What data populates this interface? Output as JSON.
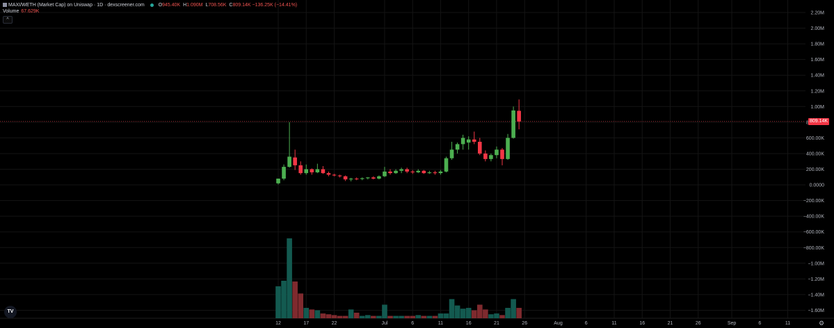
{
  "header": {
    "symbol": "MAXI/WETH (Market Cap) on Uniswap · 1D · dexscreener.com",
    "o_label": "O",
    "o_value": "945.40K",
    "h_label": "H",
    "h_value": "1.090M",
    "l_label": "L",
    "l_value": "708.56K",
    "c_label": "C",
    "c_value": "809.14K",
    "change": "−136.25K (−14.41%)"
  },
  "volume": {
    "label": "Volume",
    "value": "67.629K"
  },
  "collapse_glyph": "^",
  "logo_text": "TV",
  "settings_icon": "gear-icon",
  "current_price_label": "809.14K",
  "colors": {
    "up": "#26a69a",
    "down": "#ef5350",
    "up_bright": "#4caf50",
    "down_bright": "#f23645",
    "vol_up": "#135a50",
    "vol_down": "#7f2a2e"
  },
  "chart_data": {
    "type": "candlestick",
    "y_ticks": [
      "2.20M",
      "2.00M",
      "1.80M",
      "1.60M",
      "1.40M",
      "1.20M",
      "1.00M",
      "800.00K",
      "600.00K",
      "400.00K",
      "200.00K",
      "0.0000",
      "−200.00K",
      "−400.00K",
      "−600.00K",
      "−800.00K",
      "−1.00M",
      "−1.20M",
      "−1.40M",
      "−1.60M"
    ],
    "x_ticks": [
      "12",
      "17",
      "22",
      "Jul",
      "6",
      "11",
      "16",
      "21",
      "26",
      "Aug",
      "6",
      "11",
      "16",
      "21",
      "26",
      "Sep",
      "6",
      "11"
    ],
    "ylim": [
      -1700000,
      2250000
    ],
    "candles": [
      {
        "o": 20000,
        "h": 80000,
        "l": 5000,
        "c": 80000,
        "v": 0.4
      },
      {
        "o": 80000,
        "h": 260000,
        "l": 60000,
        "c": 230000,
        "v": 0.47
      },
      {
        "o": 230000,
        "h": 800000,
        "l": 220000,
        "c": 360000,
        "v": 1.0
      },
      {
        "o": 350000,
        "h": 450000,
        "l": 190000,
        "c": 250000,
        "v": 0.46
      },
      {
        "o": 250000,
        "h": 300000,
        "l": 130000,
        "c": 150000,
        "v": 0.31
      },
      {
        "o": 150000,
        "h": 260000,
        "l": 130000,
        "c": 200000,
        "v": 0.13
      },
      {
        "o": 200000,
        "h": 210000,
        "l": 130000,
        "c": 160000,
        "v": 0.11
      },
      {
        "o": 160000,
        "h": 270000,
        "l": 150000,
        "c": 200000,
        "v": 0.1
      },
      {
        "o": 200000,
        "h": 240000,
        "l": 140000,
        "c": 150000,
        "v": 0.06
      },
      {
        "o": 150000,
        "h": 170000,
        "l": 110000,
        "c": 130000,
        "v": 0.05
      },
      {
        "o": 130000,
        "h": 140000,
        "l": 110000,
        "c": 120000,
        "v": 0.04
      },
      {
        "o": 120000,
        "h": 130000,
        "l": 95000,
        "c": 110000,
        "v": 0.03
      },
      {
        "o": 110000,
        "h": 120000,
        "l": 50000,
        "c": 70000,
        "v": 0.03
      },
      {
        "o": 70000,
        "h": 90000,
        "l": 45000,
        "c": 80000,
        "v": 0.11
      },
      {
        "o": 80000,
        "h": 95000,
        "l": 60000,
        "c": 75000,
        "v": 0.07
      },
      {
        "o": 75000,
        "h": 95000,
        "l": 60000,
        "c": 85000,
        "v": 0.03
      },
      {
        "o": 85000,
        "h": 100000,
        "l": 70000,
        "c": 95000,
        "v": 0.04
      },
      {
        "o": 95000,
        "h": 110000,
        "l": 70000,
        "c": 80000,
        "v": 0.03
      },
      {
        "o": 80000,
        "h": 120000,
        "l": 70000,
        "c": 110000,
        "v": 0.03
      },
      {
        "o": 110000,
        "h": 230000,
        "l": 100000,
        "c": 170000,
        "v": 0.17
      },
      {
        "o": 170000,
        "h": 200000,
        "l": 130000,
        "c": 150000,
        "v": 0.03
      },
      {
        "o": 150000,
        "h": 200000,
        "l": 140000,
        "c": 180000,
        "v": 0.03
      },
      {
        "o": 180000,
        "h": 220000,
        "l": 150000,
        "c": 200000,
        "v": 0.03
      },
      {
        "o": 200000,
        "h": 220000,
        "l": 150000,
        "c": 170000,
        "v": 0.03
      },
      {
        "o": 170000,
        "h": 190000,
        "l": 140000,
        "c": 160000,
        "v": 0.03
      },
      {
        "o": 160000,
        "h": 200000,
        "l": 150000,
        "c": 180000,
        "v": 0.04
      },
      {
        "o": 180000,
        "h": 190000,
        "l": 140000,
        "c": 150000,
        "v": 0.03
      },
      {
        "o": 150000,
        "h": 180000,
        "l": 140000,
        "c": 160000,
        "v": 0.03
      },
      {
        "o": 160000,
        "h": 180000,
        "l": 130000,
        "c": 150000,
        "v": 0.03
      },
      {
        "o": 150000,
        "h": 190000,
        "l": 130000,
        "c": 170000,
        "v": 0.06
      },
      {
        "o": 170000,
        "h": 360000,
        "l": 160000,
        "c": 340000,
        "v": 0.06
      },
      {
        "o": 340000,
        "h": 550000,
        "l": 320000,
        "c": 450000,
        "v": 0.24
      },
      {
        "o": 450000,
        "h": 540000,
        "l": 400000,
        "c": 520000,
        "v": 0.16
      },
      {
        "o": 520000,
        "h": 640000,
        "l": 450000,
        "c": 600000,
        "v": 0.12
      },
      {
        "o": 540000,
        "h": 620000,
        "l": 450000,
        "c": 580000,
        "v": 0.13
      },
      {
        "o": 580000,
        "h": 680000,
        "l": 520000,
        "c": 550000,
        "v": 0.1
      },
      {
        "o": 550000,
        "h": 600000,
        "l": 380000,
        "c": 400000,
        "v": 0.17
      },
      {
        "o": 400000,
        "h": 440000,
        "l": 300000,
        "c": 330000,
        "v": 0.11
      },
      {
        "o": 330000,
        "h": 400000,
        "l": 300000,
        "c": 380000,
        "v": 0.05
      },
      {
        "o": 380000,
        "h": 490000,
        "l": 340000,
        "c": 450000,
        "v": 0.06
      },
      {
        "o": 450000,
        "h": 470000,
        "l": 250000,
        "c": 330000,
        "v": 0.04
      },
      {
        "o": 330000,
        "h": 650000,
        "l": 320000,
        "c": 600000,
        "v": 0.13
      },
      {
        "o": 600000,
        "h": 1000000,
        "l": 590000,
        "c": 950000,
        "v": 0.24
      },
      {
        "o": 945400,
        "h": 1090000,
        "l": 708560,
        "c": 809140,
        "v": 0.13
      }
    ]
  }
}
